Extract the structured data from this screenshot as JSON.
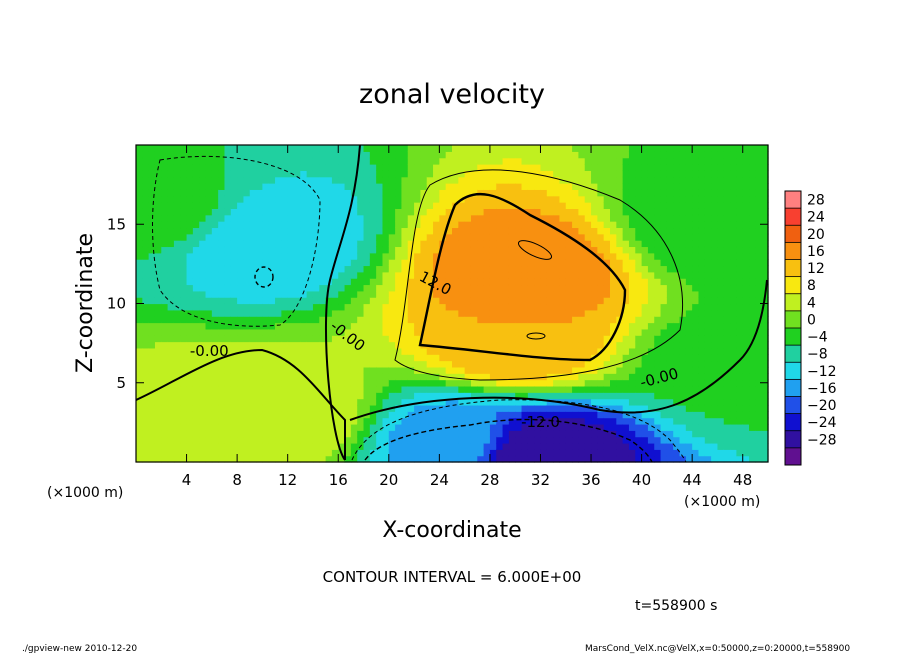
{
  "chart_data": {
    "type": "heatmap",
    "title": "zonal velocity",
    "xlabel": "X-coordinate",
    "ylabel": "Z-coordinate",
    "x_unit_label": "(×1000 m)",
    "y_unit_label": "(×1000 m)",
    "xlim": [
      0,
      50
    ],
    "ylim": [
      0,
      20
    ],
    "x_ticks": [
      4,
      8,
      12,
      16,
      20,
      24,
      28,
      32,
      36,
      40,
      44,
      48
    ],
    "y_ticks": [
      5,
      10,
      15
    ],
    "colorbar": {
      "levels": [
        28,
        24,
        20,
        16,
        12,
        8,
        4,
        0,
        -4,
        -8,
        -12,
        -16,
        -20,
        -24,
        -28
      ],
      "colors": [
        "#ff8080",
        "#f84030",
        "#f06010",
        "#f89010",
        "#f8c010",
        "#f8e810",
        "#c0f020",
        "#70e020",
        "#20d020",
        "#20d0a0",
        "#20d8e8",
        "#20a0f0",
        "#2050e8",
        "#1010d0",
        "#3010a0",
        "#601090"
      ]
    },
    "contour_labels": [
      {
        "text": "12.0",
        "x": 23.5,
        "y": 11.0,
        "rotate": 28
      },
      {
        "text": "-0.00",
        "x": 16.5,
        "y": 7.7,
        "rotate": 38
      },
      {
        "text": "-0.00",
        "x": 5.8,
        "y": 6.7,
        "rotate": 0
      },
      {
        "text": "-0.00",
        "x": 41.5,
        "y": 5.0,
        "rotate": -15
      },
      {
        "text": "-12.0",
        "x": 32.0,
        "y": 2.2,
        "rotate": 0
      }
    ],
    "field_centers": [
      {
        "x": 10,
        "y": 14,
        "value": -12
      },
      {
        "x": 31,
        "y": 12,
        "value": 20
      },
      {
        "x": 30,
        "y": 7.5,
        "value": 16
      },
      {
        "x": 32,
        "y": 0.5,
        "value": -28
      },
      {
        "x": 25,
        "y": 1.5,
        "value": -14
      },
      {
        "x": 5,
        "y": 3,
        "value": 6
      },
      {
        "x": 12,
        "y": 3,
        "value": 8
      },
      {
        "x": 47,
        "y": 6,
        "value": -3
      },
      {
        "x": 46,
        "y": 15,
        "value": -4
      },
      {
        "x": 2,
        "y": 16,
        "value": -2
      }
    ]
  },
  "footer": {
    "contour_interval": "CONTOUR INTERVAL = 6.000E+00",
    "time": "t=558900  s",
    "left_note": "./gpview-new   2010-12-20",
    "right_note": "MarsCond_VelX.nc@VelX,x=0:50000,z=0:20000,t=558900"
  }
}
